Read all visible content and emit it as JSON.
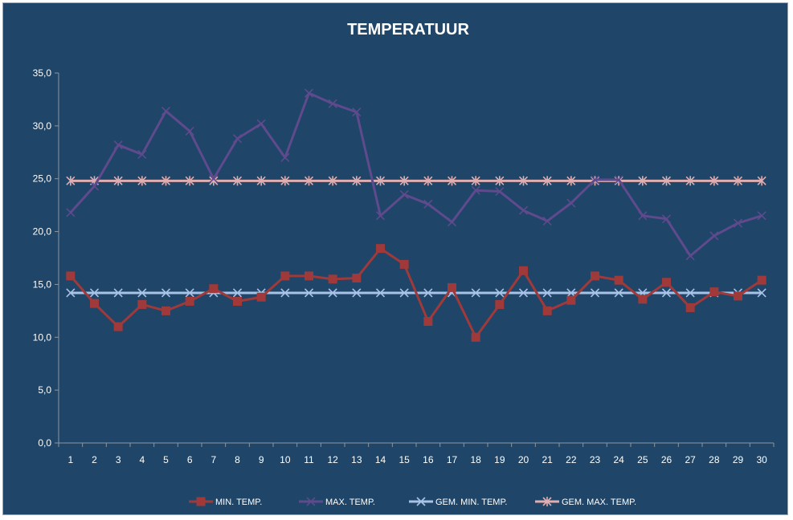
{
  "chart_data": {
    "type": "line",
    "title": "TEMPERATUUR",
    "xlabel": "",
    "ylabel": "",
    "x": [
      1,
      2,
      3,
      4,
      5,
      6,
      7,
      8,
      9,
      10,
      11,
      12,
      13,
      14,
      15,
      16,
      17,
      18,
      19,
      20,
      21,
      22,
      23,
      24,
      25,
      26,
      27,
      28,
      29,
      30
    ],
    "ylim": [
      0,
      35
    ],
    "yticks": [
      "0,0",
      "5,0",
      "10,0",
      "15,0",
      "20,0",
      "25,0",
      "30,0",
      "35,0"
    ],
    "grid": false,
    "legend_position": "bottom",
    "series": [
      {
        "name": "MIN. TEMP.",
        "color": "#a03a3a",
        "marker": "square",
        "values": [
          15.8,
          13.2,
          11.0,
          13.1,
          12.5,
          13.4,
          14.6,
          13.4,
          13.8,
          15.8,
          15.8,
          15.5,
          15.6,
          18.4,
          16.9,
          11.5,
          14.7,
          10.0,
          13.1,
          16.3,
          12.5,
          13.5,
          15.8,
          15.4,
          13.6,
          15.2,
          12.8,
          14.3,
          13.9,
          15.4
        ]
      },
      {
        "name": "MAX. TEMP.",
        "color": "#5e4a8c",
        "marker": "x",
        "values": [
          21.8,
          24.3,
          28.2,
          27.3,
          31.4,
          29.5,
          25.0,
          28.8,
          30.2,
          27.0,
          33.1,
          32.1,
          31.3,
          21.5,
          23.5,
          22.6,
          20.9,
          23.9,
          23.8,
          22.0,
          21.0,
          22.7,
          24.9,
          24.9,
          21.5,
          21.2,
          17.7,
          19.6,
          20.8,
          21.5
        ]
      },
      {
        "name": "GEM. MIN. TEMP.",
        "color": "#a9c3e8",
        "marker": "x",
        "values": [
          14.2,
          14.2,
          14.2,
          14.2,
          14.2,
          14.2,
          14.2,
          14.2,
          14.2,
          14.2,
          14.2,
          14.2,
          14.2,
          14.2,
          14.2,
          14.2,
          14.2,
          14.2,
          14.2,
          14.2,
          14.2,
          14.2,
          14.2,
          14.2,
          14.2,
          14.2,
          14.2,
          14.2,
          14.2,
          14.2
        ]
      },
      {
        "name": "GEM. MAX. TEMP.",
        "color": "#e0aeb0",
        "marker": "star",
        "values": [
          24.8,
          24.8,
          24.8,
          24.8,
          24.8,
          24.8,
          24.8,
          24.8,
          24.8,
          24.8,
          24.8,
          24.8,
          24.8,
          24.8,
          24.8,
          24.8,
          24.8,
          24.8,
          24.8,
          24.8,
          24.8,
          24.8,
          24.8,
          24.8,
          24.8,
          24.8,
          24.8,
          24.8,
          24.8,
          24.8
        ]
      }
    ]
  }
}
